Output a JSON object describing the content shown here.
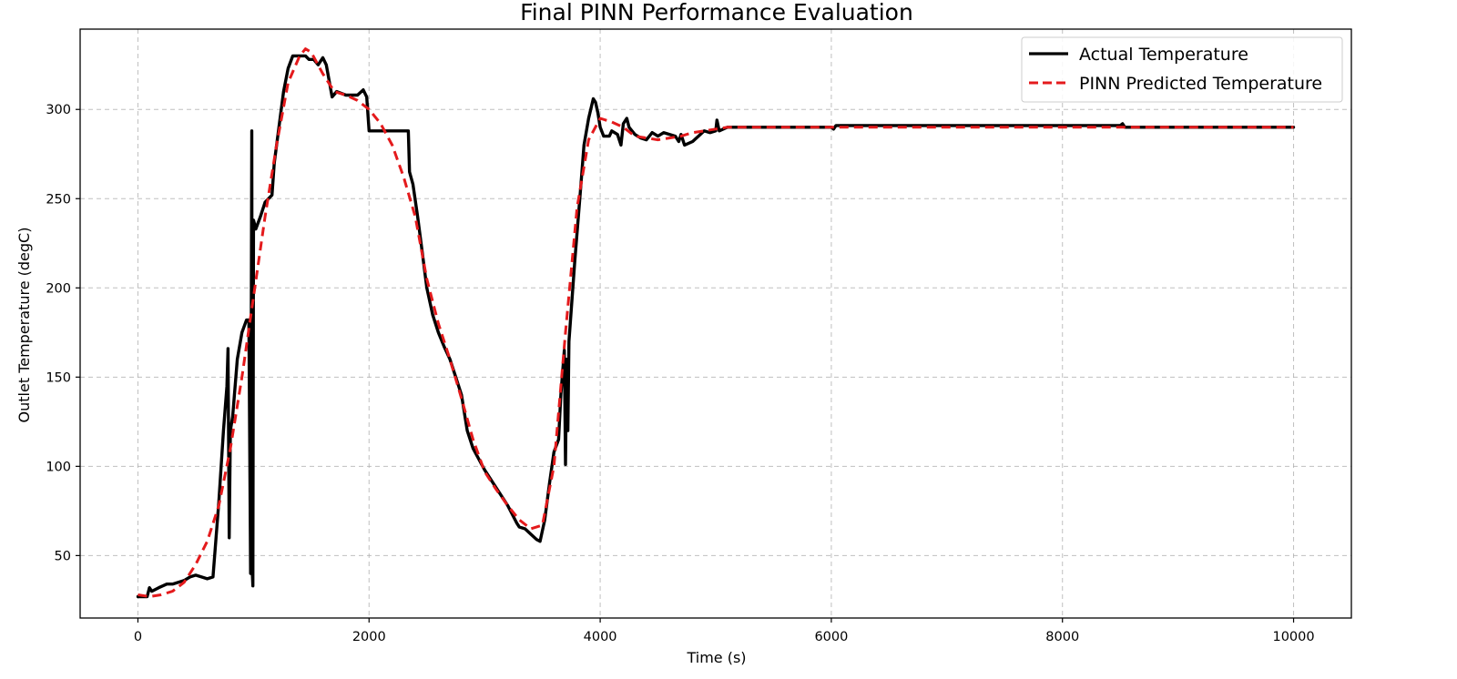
{
  "chart_data": {
    "type": "line",
    "title": "Final PINN Performance Evaluation",
    "xlabel": "Time (s)",
    "ylabel": "Outlet Temperature (degC)",
    "xlim": [
      -500,
      10500
    ],
    "ylim": [
      15,
      345
    ],
    "x_ticks": [
      0,
      2000,
      4000,
      6000,
      8000,
      10000
    ],
    "y_ticks": [
      50,
      100,
      150,
      200,
      250,
      300
    ],
    "grid": true,
    "legend_position": "top-right",
    "series": [
      {
        "name": "Actual Temperature",
        "color": "#000000",
        "style": "solid",
        "points": [
          [
            0,
            27
          ],
          [
            80,
            27
          ],
          [
            100,
            32
          ],
          [
            120,
            30
          ],
          [
            180,
            32
          ],
          [
            250,
            34
          ],
          [
            300,
            34
          ],
          [
            350,
            35
          ],
          [
            400,
            36
          ],
          [
            450,
            38
          ],
          [
            500,
            39
          ],
          [
            550,
            38
          ],
          [
            600,
            37
          ],
          [
            650,
            38
          ],
          [
            700,
            80
          ],
          [
            740,
            120
          ],
          [
            770,
            145
          ],
          [
            780,
            166
          ],
          [
            790,
            60
          ],
          [
            800,
            120
          ],
          [
            820,
            128
          ],
          [
            860,
            160
          ],
          [
            900,
            175
          ],
          [
            940,
            182
          ],
          [
            960,
            182
          ],
          [
            975,
            40
          ],
          [
            985,
            288
          ],
          [
            990,
            40
          ],
          [
            995,
            33
          ],
          [
            1000,
            238
          ],
          [
            1020,
            233
          ],
          [
            1060,
            240
          ],
          [
            1100,
            248
          ],
          [
            1160,
            252
          ],
          [
            1180,
            270
          ],
          [
            1220,
            290
          ],
          [
            1260,
            310
          ],
          [
            1300,
            323
          ],
          [
            1340,
            330
          ],
          [
            1400,
            330
          ],
          [
            1450,
            330
          ],
          [
            1480,
            328
          ],
          [
            1520,
            328
          ],
          [
            1560,
            325
          ],
          [
            1600,
            329
          ],
          [
            1630,
            325
          ],
          [
            1680,
            307
          ],
          [
            1720,
            310
          ],
          [
            1800,
            308
          ],
          [
            1900,
            308
          ],
          [
            1950,
            311
          ],
          [
            1980,
            307
          ],
          [
            2000,
            288
          ],
          [
            2100,
            288
          ],
          [
            2200,
            288
          ],
          [
            2300,
            288
          ],
          [
            2340,
            288
          ],
          [
            2350,
            265
          ],
          [
            2380,
            258
          ],
          [
            2420,
            240
          ],
          [
            2460,
            220
          ],
          [
            2500,
            200
          ],
          [
            2550,
            185
          ],
          [
            2600,
            175
          ],
          [
            2650,
            167
          ],
          [
            2700,
            160
          ],
          [
            2750,
            150
          ],
          [
            2800,
            140
          ],
          [
            2850,
            120
          ],
          [
            2900,
            110
          ],
          [
            3000,
            98
          ],
          [
            3100,
            88
          ],
          [
            3200,
            78
          ],
          [
            3280,
            68
          ],
          [
            3300,
            66
          ],
          [
            3350,
            65
          ],
          [
            3400,
            62
          ],
          [
            3450,
            59
          ],
          [
            3480,
            58
          ],
          [
            3520,
            70
          ],
          [
            3560,
            90
          ],
          [
            3600,
            108
          ],
          [
            3640,
            115
          ],
          [
            3660,
            140
          ],
          [
            3690,
            165
          ],
          [
            3700,
            101
          ],
          [
            3710,
            160
          ],
          [
            3720,
            120
          ],
          [
            3730,
            170
          ],
          [
            3780,
            215
          ],
          [
            3830,
            255
          ],
          [
            3860,
            280
          ],
          [
            3900,
            295
          ],
          [
            3940,
            306
          ],
          [
            3960,
            304
          ],
          [
            3980,
            298
          ],
          [
            4000,
            290
          ],
          [
            4030,
            285
          ],
          [
            4080,
            285
          ],
          [
            4100,
            288
          ],
          [
            4150,
            286
          ],
          [
            4180,
            280
          ],
          [
            4200,
            292
          ],
          [
            4230,
            295
          ],
          [
            4250,
            290
          ],
          [
            4300,
            286
          ],
          [
            4350,
            284
          ],
          [
            4400,
            283
          ],
          [
            4450,
            287
          ],
          [
            4500,
            285
          ],
          [
            4550,
            287
          ],
          [
            4650,
            285
          ],
          [
            4680,
            282
          ],
          [
            4700,
            286
          ],
          [
            4730,
            280
          ],
          [
            4800,
            282
          ],
          [
            4850,
            285
          ],
          [
            4900,
            288
          ],
          [
            4950,
            287
          ],
          [
            5000,
            288
          ],
          [
            5010,
            294
          ],
          [
            5030,
            288
          ],
          [
            5100,
            290
          ],
          [
            6000,
            290
          ],
          [
            6020,
            289
          ],
          [
            6040,
            291
          ],
          [
            8500,
            291
          ],
          [
            8520,
            292
          ],
          [
            8540,
            290
          ],
          [
            10000,
            290
          ]
        ]
      },
      {
        "name": "PINN Predicted Temperature",
        "color": "#e41a1c",
        "style": "dashed",
        "points": [
          [
            0,
            28
          ],
          [
            100,
            27
          ],
          [
            200,
            28
          ],
          [
            300,
            30
          ],
          [
            400,
            35
          ],
          [
            500,
            45
          ],
          [
            600,
            58
          ],
          [
            700,
            78
          ],
          [
            800,
            110
          ],
          [
            900,
            150
          ],
          [
            1000,
            195
          ],
          [
            1100,
            240
          ],
          [
            1200,
            280
          ],
          [
            1300,
            315
          ],
          [
            1400,
            330
          ],
          [
            1450,
            334
          ],
          [
            1500,
            332
          ],
          [
            1600,
            320
          ],
          [
            1700,
            310
          ],
          [
            1800,
            308
          ],
          [
            1900,
            305
          ],
          [
            2000,
            300
          ],
          [
            2100,
            292
          ],
          [
            2200,
            280
          ],
          [
            2300,
            262
          ],
          [
            2400,
            240
          ],
          [
            2500,
            205
          ],
          [
            2600,
            180
          ],
          [
            2700,
            160
          ],
          [
            2800,
            138
          ],
          [
            2900,
            115
          ],
          [
            3000,
            97
          ],
          [
            3100,
            87
          ],
          [
            3200,
            78
          ],
          [
            3300,
            70
          ],
          [
            3400,
            65
          ],
          [
            3500,
            67
          ],
          [
            3600,
            100
          ],
          [
            3700,
            175
          ],
          [
            3800,
            245
          ],
          [
            3900,
            283
          ],
          [
            4000,
            295
          ],
          [
            4100,
            293
          ],
          [
            4200,
            290
          ],
          [
            4300,
            285
          ],
          [
            4400,
            284
          ],
          [
            4500,
            283
          ],
          [
            4600,
            284
          ],
          [
            4700,
            285
          ],
          [
            4800,
            287
          ],
          [
            4900,
            288
          ],
          [
            5000,
            289
          ],
          [
            5100,
            290
          ],
          [
            6000,
            290
          ],
          [
            8000,
            290
          ],
          [
            10000,
            290
          ]
        ]
      }
    ]
  }
}
